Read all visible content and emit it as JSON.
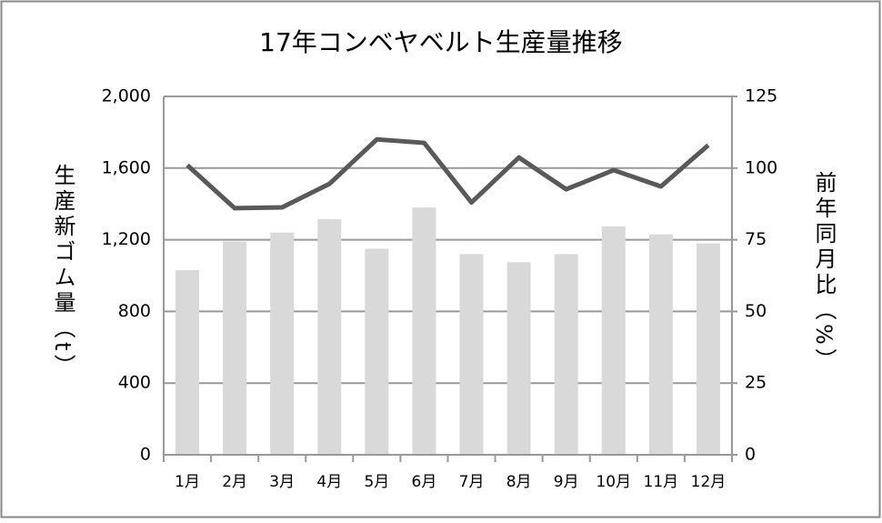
{
  "chart_data": {
    "type": "bar-line",
    "title": "17年コンベヤベルト生産量推移",
    "y_label": "生産新ゴム量（t）",
    "y2_label": "前年同月比（%）",
    "categories": [
      "1月",
      "2月",
      "3月",
      "4月",
      "5月",
      "6月",
      "7月",
      "8月",
      "9月",
      "10月",
      "11月",
      "12月"
    ],
    "series": [
      {
        "type": "bar",
        "color": "#d9d9d9",
        "values": [
          1030,
          1190,
          1240,
          1315,
          1150,
          1380,
          1120,
          1075,
          1120,
          1275,
          1230,
          1180
        ]
      },
      {
        "type": "line",
        "axis": "y2",
        "color": "#595959",
        "values": [
          101,
          86,
          86.3,
          94.5,
          110,
          108.8,
          88,
          103.7,
          92.6,
          99.3,
          93.6,
          108
        ]
      }
    ],
    "ylim": [
      0,
      2000
    ],
    "yticks": [
      0,
      400,
      800,
      {
        "value": 1200,
        "label": "1,200"
      },
      {
        "value": 1600,
        "label": "1,600"
      },
      {
        "value": 2000,
        "label": "2,000"
      }
    ],
    "y2lim": [
      0,
      125
    ],
    "y2ticks": [
      0,
      25,
      50,
      75,
      100,
      125
    ],
    "grid": true
  }
}
